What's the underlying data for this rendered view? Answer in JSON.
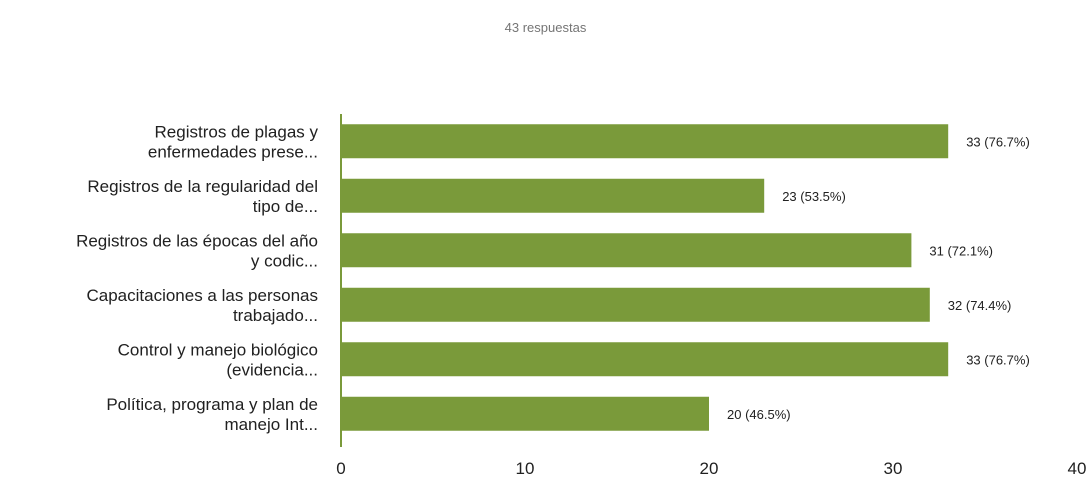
{
  "header": {
    "responses_text": "43 respuestas"
  },
  "colors": {
    "bar": "#7A9A3A",
    "axis": "#7A9A3A",
    "text": "#212121",
    "subtitle": "#757575"
  },
  "chart_data": {
    "type": "bar",
    "orientation": "horizontal",
    "title": "",
    "xlabel": "",
    "ylabel": "",
    "grid": false,
    "legend": "none",
    "categories": [
      [
        "Registros de plagas y",
        "enfermedades prese..."
      ],
      [
        "Registros de la regularidad del",
        "tipo de..."
      ],
      [
        "Registros de las épocas del año",
        "y codic..."
      ],
      [
        "Capacitaciones a las personas",
        "trabajado..."
      ],
      [
        "Control y manejo biológico",
        "(evidencia..."
      ],
      [
        "Política, programa y plan de",
        "manejo Int..."
      ]
    ],
    "values": [
      33,
      23,
      31,
      32,
      33,
      20
    ],
    "data_labels": [
      "33 (76.7%)",
      "23 (53.5%)",
      "31 (72.1%)",
      "32 (74.4%)",
      "33 (76.7%)",
      "20 (46.5%)"
    ],
    "xlim": [
      0,
      40
    ],
    "xticks": [
      0,
      10,
      20,
      30,
      40
    ],
    "xtick_labels": [
      "0",
      "10",
      "20",
      "30",
      "40"
    ]
  }
}
